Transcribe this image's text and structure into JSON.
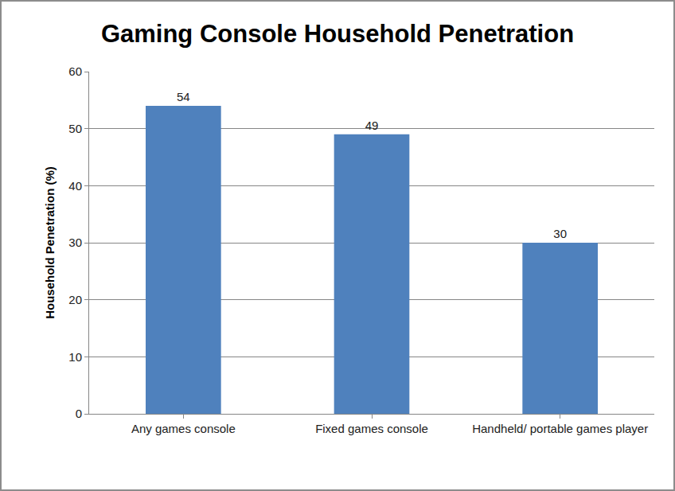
{
  "chart_data": {
    "type": "bar",
    "title": "Gaming Console Household Penetration",
    "y_label": "Household Penetration (%)",
    "categories": [
      "Any games console",
      "Fixed games console",
      "Handheld/ portable games player"
    ],
    "values": [
      54,
      49,
      30
    ],
    "color": "#4f81bd",
    "ylim": [
      0,
      60
    ],
    "yticks": [
      0,
      10,
      20,
      30,
      40,
      50,
      60
    ],
    "grid": true,
    "data_labels": true
  }
}
